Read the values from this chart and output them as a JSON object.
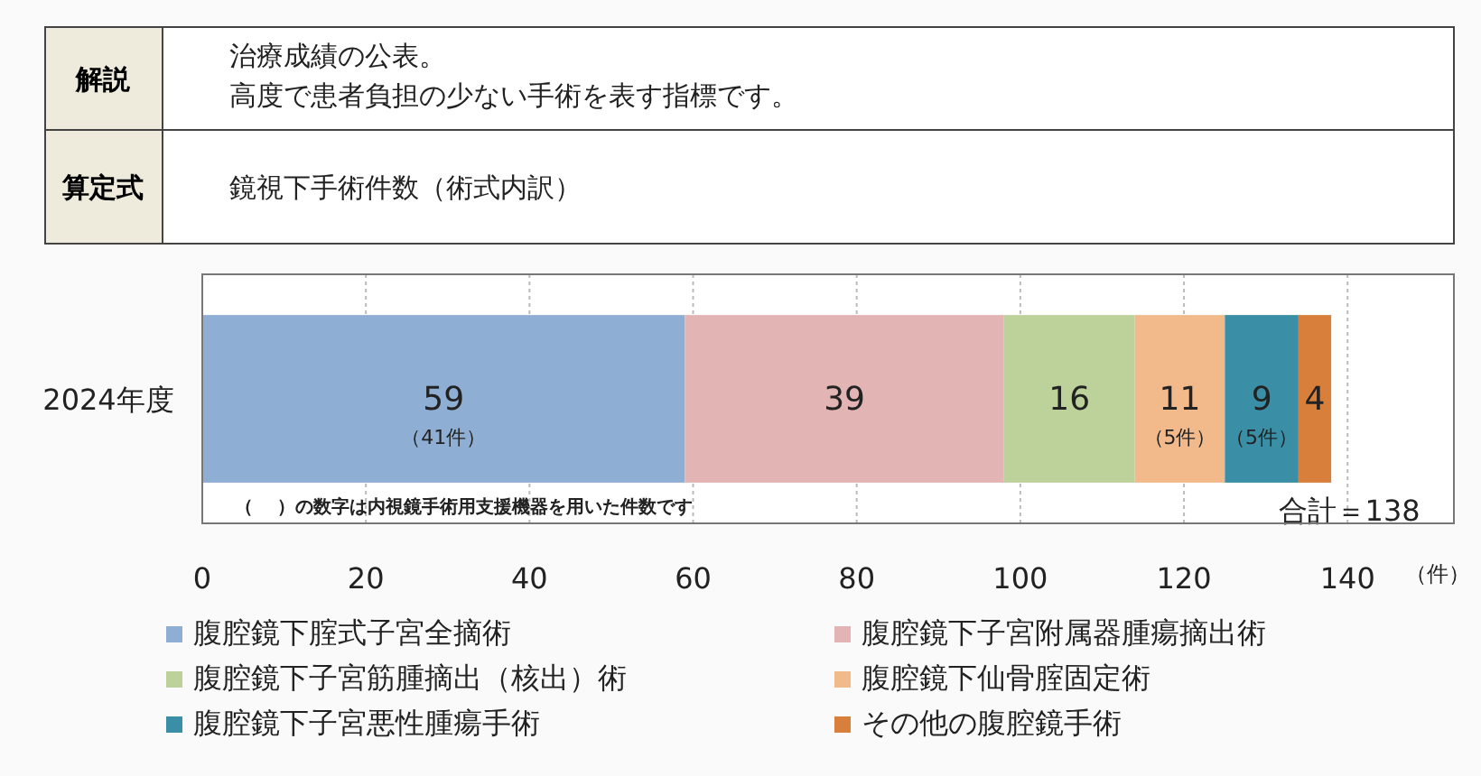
{
  "chart_data": {
    "type": "bar",
    "orientation": "horizontal",
    "stacked": true,
    "categories": [
      "2024年度"
    ],
    "xlabel": "（件）",
    "xlim": [
      0,
      153
    ],
    "xticks": [
      0,
      20,
      40,
      60,
      80,
      100,
      120,
      140
    ],
    "grid": "x",
    "legend": "bottom",
    "totals": [
      "合計＝138"
    ],
    "annotations": [
      "解説",
      "治療成績の公表。",
      "高度で患者負担の少ない手術を表す指標です。",
      "算定式",
      "鏡視下手術件数（術式内訳）",
      "（　 ）の数字は内視鏡手術用支援機器を用いた件数です"
    ],
    "series": [
      {
        "name": "腹腔鏡下腟式子宮全摘術",
        "color": "#8faed3",
        "values": [
          59
        ],
        "value_labels": [
          "59\n（41件）"
        ]
      },
      {
        "name": "腹腔鏡下子宮附属器腫瘍摘出術",
        "color": "#e2b4b3",
        "values": [
          39
        ],
        "value_labels": [
          "39"
        ]
      },
      {
        "name": "腹腔鏡下子宮筋腫摘出（核出）術",
        "color": "#bdd29b",
        "values": [
          16
        ],
        "value_labels": [
          "16"
        ]
      },
      {
        "name": "腹腔鏡下仙骨腟固定術",
        "color": "#f2b98b",
        "values": [
          11
        ],
        "value_labels": [
          "11\n（5件）"
        ]
      },
      {
        "name": "腹腔鏡下子宮悪性腫瘍手術",
        "color": "#3a8ea5",
        "values": [
          9
        ],
        "value_labels": [
          "9\n（5件）"
        ]
      },
      {
        "name": "その他の腹腔鏡手術",
        "color": "#d97f3c",
        "values": [
          4
        ],
        "value_labels": [
          "4"
        ]
      }
    ]
  }
}
